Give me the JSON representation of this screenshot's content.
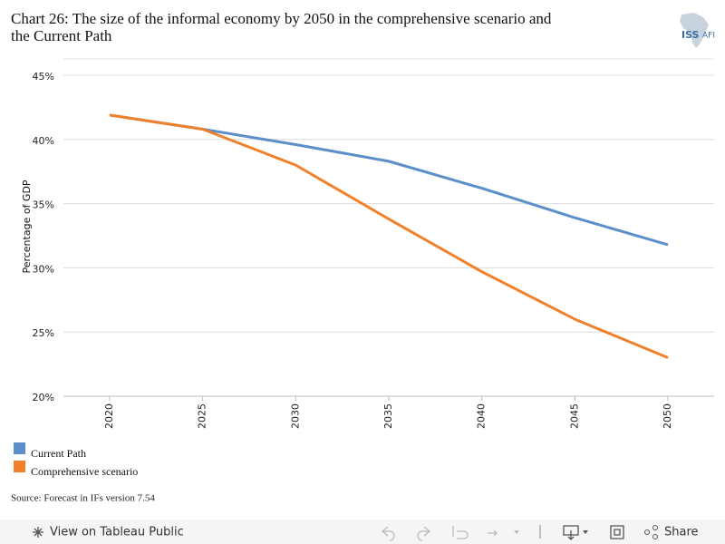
{
  "chart_data": {
    "type": "line",
    "title": "Chart 26: The size of the informal economy by 2050 in the comprehensive scenario and the Current Path",
    "y_label": "Percentage of GDP",
    "source": "Source: Forecast in IFs version 7.54",
    "categories": [
      "2020",
      "2025",
      "2030",
      "2035",
      "2040",
      "2045",
      "2050"
    ],
    "series": [
      {
        "name": "Current Path",
        "color": "#5b8fc9",
        "values": [
          41.9,
          40.8,
          39.6,
          38.3,
          36.2,
          33.9,
          31.8
        ]
      },
      {
        "name": "Comprehensive scenario",
        "color": "#f0812a",
        "values": [
          41.9,
          40.8,
          38.0,
          33.8,
          29.7,
          26.0,
          23.0
        ]
      }
    ],
    "ylim": [
      20,
      45
    ],
    "yticks": [
      {
        "value": 20,
        "label": "20%"
      },
      {
        "value": 25,
        "label": "25%"
      },
      {
        "value": 30,
        "label": "30%"
      },
      {
        "value": 35,
        "label": "35%"
      },
      {
        "value": 40,
        "label": "40%"
      },
      {
        "value": 45,
        "label": "45%"
      }
    ],
    "grid": true
  },
  "logo": {
    "name": "ISS",
    "suffix": "AFI"
  },
  "toolbar": {
    "view": "View on Tableau Public",
    "share": "Share"
  }
}
